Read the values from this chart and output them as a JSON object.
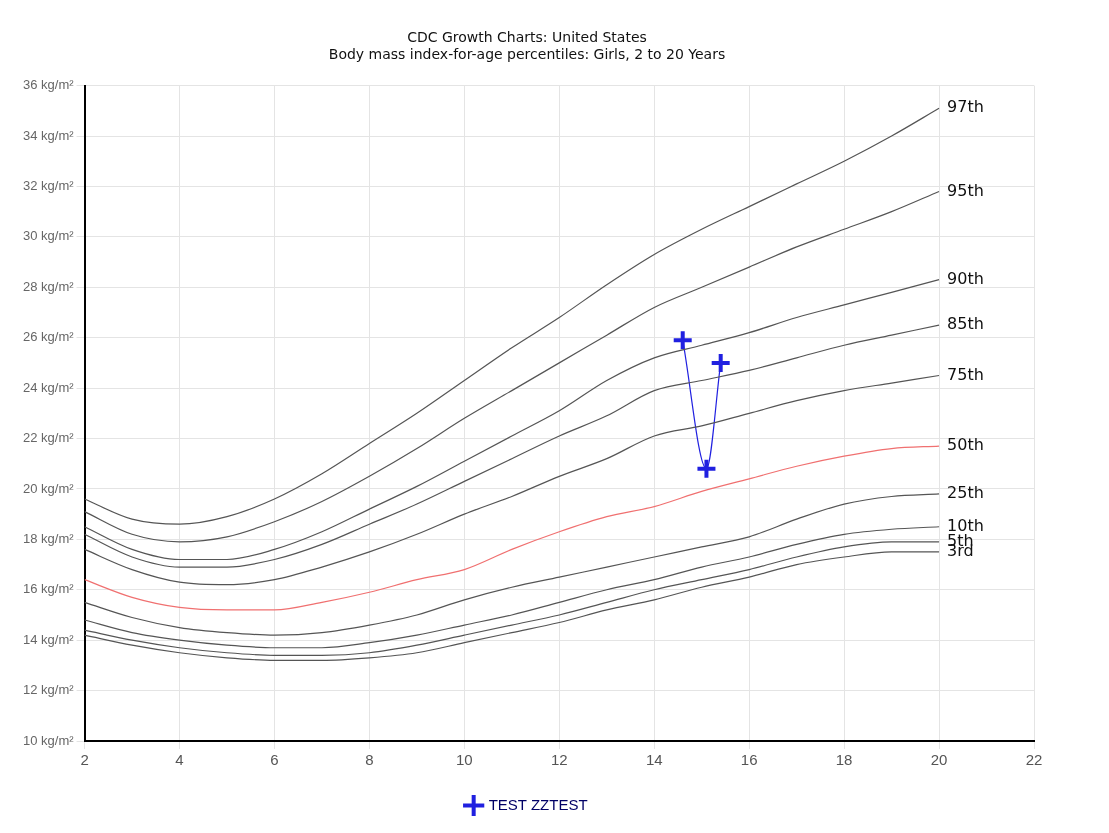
{
  "chart_data": {
    "type": "line",
    "title": "CDC Growth Charts: United States",
    "subtitle": "Body mass index-for-age percentiles: Girls, 2 to 20 Years",
    "x": [
      2,
      3,
      4,
      5,
      6,
      7,
      8,
      9,
      10,
      11,
      12,
      13,
      14,
      15,
      16,
      17,
      18,
      19,
      20
    ],
    "xlim": [
      2,
      22
    ],
    "xticks": [
      2,
      4,
      6,
      8,
      10,
      12,
      14,
      16,
      18,
      20,
      22
    ],
    "ylim": [
      10,
      36
    ],
    "yticks": [
      {
        "value": 10,
        "label": "10 kg/m²"
      },
      {
        "value": 12,
        "label": "12 kg/m²"
      },
      {
        "value": 14,
        "label": "14 kg/m²"
      },
      {
        "value": 16,
        "label": "16 kg/m²"
      },
      {
        "value": 18,
        "label": "18 kg/m²"
      },
      {
        "value": 20,
        "label": "20 kg/m²"
      },
      {
        "value": 22,
        "label": "22 kg/m²"
      },
      {
        "value": 24,
        "label": "24 kg/m²"
      },
      {
        "value": 26,
        "label": "26 kg/m²"
      },
      {
        "value": 28,
        "label": "28 kg/m²"
      },
      {
        "value": 30,
        "label": "30 kg/m²"
      },
      {
        "value": 32,
        "label": "32 kg/m²"
      },
      {
        "value": 34,
        "label": "34 kg/m²"
      },
      {
        "value": 36,
        "label": "36 kg/m²"
      }
    ],
    "grid": true,
    "legend": "bottom",
    "series": [
      {
        "name": "97th",
        "color": "#555555",
        "marker": "none",
        "values": [
          19.6,
          18.8,
          18.6,
          18.9,
          19.6,
          20.6,
          21.8,
          23.0,
          24.3,
          25.6,
          26.8,
          28.1,
          29.3,
          30.3,
          31.2,
          32.1,
          33.0,
          34.0,
          35.1
        ]
      },
      {
        "name": "95th",
        "color": "#555555",
        "marker": "none",
        "values": [
          19.1,
          18.2,
          17.9,
          18.1,
          18.7,
          19.5,
          20.5,
          21.6,
          22.8,
          23.9,
          25.0,
          26.1,
          27.2,
          28.0,
          28.8,
          29.6,
          30.3,
          31.0,
          31.8
        ]
      },
      {
        "name": "90th",
        "color": "#555555",
        "marker": "none",
        "values": [
          18.5,
          17.6,
          17.2,
          17.2,
          17.6,
          18.3,
          19.2,
          20.1,
          21.1,
          22.1,
          23.1,
          24.3,
          25.2,
          25.7,
          26.2,
          26.8,
          27.3,
          27.8,
          28.3
        ]
      },
      {
        "name": "85th",
        "color": "#555555",
        "marker": "none",
        "values": [
          18.2,
          17.3,
          16.9,
          16.9,
          17.2,
          17.8,
          18.6,
          19.4,
          20.3,
          21.2,
          22.1,
          22.9,
          23.9,
          24.3,
          24.7,
          25.2,
          25.7,
          26.1,
          26.5
        ]
      },
      {
        "name": "75th",
        "color": "#555555",
        "marker": "none",
        "values": [
          17.6,
          16.8,
          16.3,
          16.2,
          16.4,
          16.9,
          17.5,
          18.2,
          19.0,
          19.7,
          20.5,
          21.2,
          22.1,
          22.5,
          23.0,
          23.5,
          23.9,
          24.2,
          24.5
        ]
      },
      {
        "name": "50th",
        "color": "#f07070",
        "marker": "none",
        "values": [
          16.4,
          15.7,
          15.3,
          15.2,
          15.2,
          15.5,
          15.9,
          16.4,
          16.8,
          17.6,
          18.3,
          18.9,
          19.3,
          19.9,
          20.4,
          20.9,
          21.3,
          21.6,
          21.7
        ]
      },
      {
        "name": "25th",
        "color": "#555555",
        "marker": "none",
        "values": [
          15.5,
          14.9,
          14.5,
          14.3,
          14.2,
          14.3,
          14.6,
          15.0,
          15.6,
          16.1,
          16.5,
          16.9,
          17.3,
          17.7,
          18.1,
          18.8,
          19.4,
          19.7,
          19.8
        ]
      },
      {
        "name": "10th",
        "color": "#555555",
        "marker": "none",
        "values": [
          14.8,
          14.3,
          14.0,
          13.8,
          13.7,
          13.7,
          13.9,
          14.2,
          14.6,
          15.0,
          15.5,
          16.0,
          16.4,
          16.9,
          17.3,
          17.8,
          18.2,
          18.4,
          18.5
        ]
      },
      {
        "name": "5th",
        "color": "#555555",
        "marker": "none",
        "values": [
          14.4,
          14.0,
          13.7,
          13.5,
          13.4,
          13.4,
          13.5,
          13.8,
          14.2,
          14.6,
          15.0,
          15.5,
          16.0,
          16.4,
          16.8,
          17.3,
          17.7,
          17.9,
          17.9
        ]
      },
      {
        "name": "3rd",
        "color": "#555555",
        "marker": "none",
        "values": [
          14.2,
          13.8,
          13.5,
          13.3,
          13.2,
          13.2,
          13.3,
          13.5,
          13.9,
          14.3,
          14.7,
          15.2,
          15.6,
          16.1,
          16.5,
          17.0,
          17.3,
          17.5,
          17.5
        ]
      },
      {
        "name": "TEST ZZTEST",
        "color": "#2020e0",
        "marker": "cross",
        "x": [
          14.6,
          15.1,
          15.4
        ],
        "values": [
          25.9,
          20.8,
          25.0
        ]
      }
    ]
  }
}
